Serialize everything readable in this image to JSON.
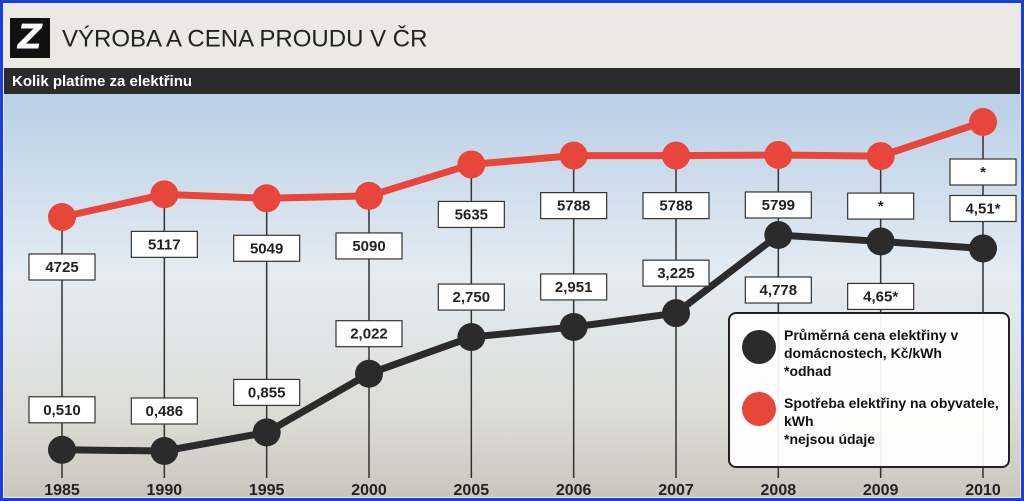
{
  "header": {
    "logo": "Z"
  },
  "chart_data": {
    "type": "line",
    "title": "VÝROBA A CENA PROUDU V ČR",
    "subtitle": "Kolik platíme za elektřinu",
    "categories": [
      "1985",
      "1990",
      "1995",
      "2000",
      "2005",
      "2006",
      "2007",
      "2008",
      "2009",
      "2010"
    ],
    "series": [
      {
        "name": "Průměrná cena elektřiny v domácnostech, Kč/kWh",
        "note": "*odhad",
        "color": "#2b2b2b",
        "values": [
          0.51,
          0.486,
          0.855,
          2.022,
          2.75,
          2.951,
          3.225,
          4.778,
          4.65,
          4.51
        ],
        "value_labels": [
          "0,510",
          "0,486",
          "0,855",
          "2,022",
          "2,750",
          "2,951",
          "3,225",
          "4,778",
          "4,65*",
          "4,51*"
        ]
      },
      {
        "name": "Spotřeba elektřiny na obyvatele, kWh",
        "note": "*nejsou údaje",
        "color": "#e8463a",
        "values": [
          4725,
          5117,
          5049,
          5090,
          5635,
          5788,
          5788,
          5799,
          5780,
          6370
        ],
        "value_labels": [
          "4725",
          "5117",
          "5049",
          "5090",
          "5635",
          "5788",
          "5788",
          "5799",
          "*",
          "*"
        ]
      }
    ]
  }
}
